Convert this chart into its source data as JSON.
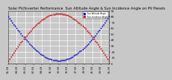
{
  "title": "Solar PV/Inverter Performance  Sun Altitude Angle & Sun Incidence Angle on PV Panels",
  "legend_labels": [
    "Sun Altitude Angle",
    "Sun Incidence Angle"
  ],
  "legend_colors": [
    "#0000cc",
    "#cc0000"
  ],
  "bg_color": "#c8c8c8",
  "plot_bg_color": "#c8c8c8",
  "grid_color": "#ffffff",
  "ylim": [
    0,
    90
  ],
  "xlim": [
    0,
    36
  ],
  "title_fontsize": 3.8,
  "tick_fontsize": 2.8,
  "dot_size": 1.0,
  "n_points": 73,
  "x_tick_count": 13,
  "x_labels": [
    "01:30",
    "03:30",
    "05:30",
    "07:30",
    "09:30",
    "11:30",
    "13:30",
    "15:30",
    "17:30",
    "19:30",
    "21:30",
    "23:30",
    "01:30"
  ],
  "y_ticks": [
    0,
    10,
    20,
    30,
    40,
    50,
    60,
    70,
    80,
    90
  ]
}
